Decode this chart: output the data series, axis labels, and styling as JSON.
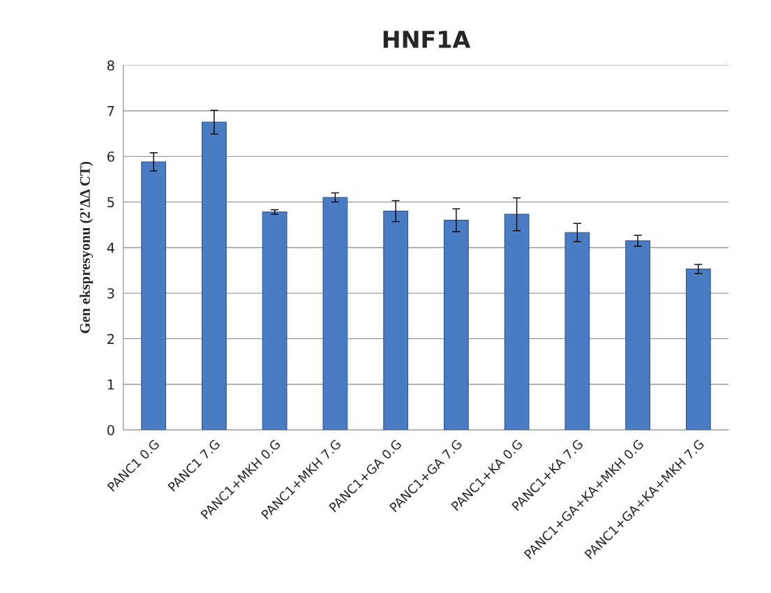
{
  "chart_data": {
    "type": "bar",
    "title": "HNF1A",
    "ylabel": "Gen ekspresyonu (2'ΔΔ CT)",
    "categories": [
      "PANC1 0.G",
      "PANC1 7.G",
      "PANC1+MKH 0.G",
      "PANC1+MKH 7.G",
      "PANC1+GA 0.G",
      "PANC1+GA 7.G",
      "PANC1+KA 0.G",
      "PANC1+KA 7.G",
      "PANC1+GA+KA+MKH 0.G",
      "PANC1+GA+KA+MKH 7.G"
    ],
    "values": [
      5.88,
      6.75,
      4.78,
      5.1,
      4.8,
      4.6,
      4.73,
      4.33,
      4.15,
      3.53
    ],
    "errors": [
      0.2,
      0.26,
      0.05,
      0.1,
      0.23,
      0.25,
      0.36,
      0.2,
      0.12,
      0.1
    ],
    "color": "#4a7cc4",
    "ylim": [
      0,
      8
    ],
    "yticks": [
      0,
      1,
      2,
      3,
      4,
      5,
      6,
      7,
      8
    ],
    "grid": "y",
    "legend": false
  }
}
